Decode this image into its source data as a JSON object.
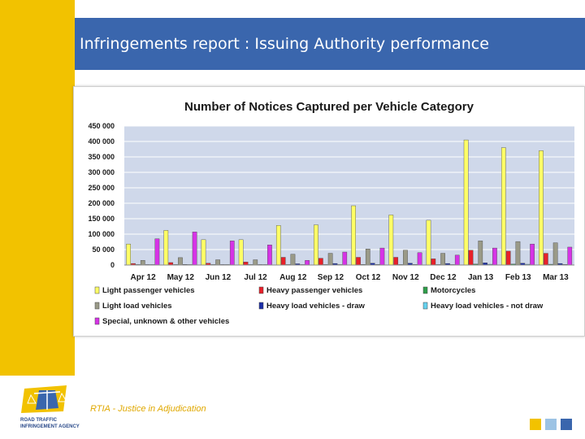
{
  "slide": {
    "title": "Infringements report :  Issuing Authority performance",
    "footer": "RTIA - Justice in Adjudication",
    "logo_text": [
      "ROAD TRAFFIC",
      "INFRINGEMENT AGENCY"
    ],
    "colors": {
      "accent_yellow": "#f2c200",
      "header_blue": "#3a66ad",
      "light_blue": "#9cc3e4"
    }
  },
  "chart_data": {
    "type": "bar",
    "title": "Number of Notices Captured per Vehicle Category",
    "xlabel": "",
    "ylabel": "",
    "ylim": [
      0,
      450000
    ],
    "yticks": [
      0,
      50000,
      100000,
      150000,
      200000,
      250000,
      300000,
      350000,
      400000,
      450000
    ],
    "ytick_labels": [
      "0",
      "50 000",
      "100 000",
      "150 000",
      "200 000",
      "250 000",
      "300 000",
      "350 000",
      "400 000",
      "450 000"
    ],
    "categories": [
      "Apr 12",
      "May 12",
      "Jun 12",
      "Jul 12",
      "Aug 12",
      "Sep 12",
      "Oct 12",
      "Nov 12",
      "Dec 12",
      "Jan 13",
      "Feb 13",
      "Mar 13"
    ],
    "grid": true,
    "legend_position": "bottom",
    "series": [
      {
        "name": "Light passenger vehicles",
        "color": "#ffff66",
        "values": [
          68000,
          112000,
          82000,
          82000,
          128000,
          130000,
          192000,
          162000,
          145000,
          405000,
          380000,
          370000
        ]
      },
      {
        "name": "Heavy passenger vehicles",
        "color": "#e8202a",
        "values": [
          5000,
          8000,
          6000,
          10000,
          25000,
          22000,
          25000,
          25000,
          20000,
          48000,
          45000,
          38000
        ]
      },
      {
        "name": "Motorcycles",
        "color": "#2e9e4a",
        "values": [
          500,
          800,
          600,
          700,
          1500,
          1500,
          1800,
          1600,
          1500,
          3000,
          3000,
          2500
        ]
      },
      {
        "name": "Light load vehicles",
        "color": "#9a9a88",
        "values": [
          15000,
          24000,
          17000,
          17000,
          35000,
          38000,
          52000,
          48000,
          38000,
          78000,
          76000,
          72000
        ]
      },
      {
        "name": "Heavy load vehicles - draw",
        "color": "#1c2fa8",
        "values": [
          1000,
          2000,
          1500,
          1500,
          4000,
          5000,
          6000,
          6000,
          5000,
          7000,
          6000,
          5000
        ]
      },
      {
        "name": "Heavy load vehicles - not draw",
        "color": "#66d2ee",
        "values": [
          500,
          800,
          600,
          600,
          1200,
          1500,
          1800,
          1800,
          1500,
          2500,
          2500,
          2000
        ]
      },
      {
        "name": "Special, unknown & other vehicles",
        "color": "#d633e6",
        "values": [
          85000,
          107000,
          78000,
          65000,
          15000,
          42000,
          55000,
          40000,
          32000,
          55000,
          68000,
          58000
        ]
      }
    ]
  }
}
